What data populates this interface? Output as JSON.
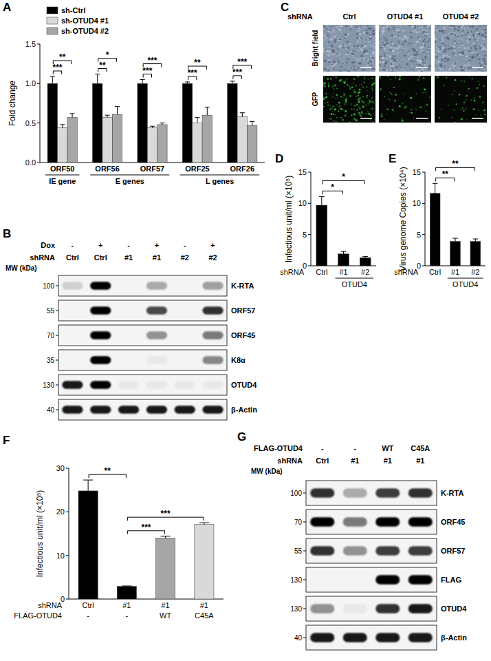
{
  "chart_data": [
    {
      "panel": "A",
      "type": "bar",
      "ylabel": "Fold change",
      "categories": [
        "ORF50",
        "ORF56",
        "ORF57",
        "ORF25",
        "ORF26"
      ],
      "groups": [
        {
          "label": "IE gene",
          "from": 0,
          "to": 0
        },
        {
          "label": "E genes",
          "from": 1,
          "to": 2
        },
        {
          "label": "L genes",
          "from": 3,
          "to": 4
        }
      ],
      "series": [
        {
          "name": "sh-Ctrl",
          "color": "#000000",
          "values": [
            1.0,
            1.0,
            1.0,
            1.0,
            1.0
          ],
          "errors": [
            0.09,
            0.12,
            0.05,
            0.02,
            0.03
          ]
        },
        {
          "name": "sh-OTUD4 #1",
          "color": "#d9d9d9",
          "values": [
            0.44,
            0.57,
            0.44,
            0.5,
            0.58
          ],
          "errors": [
            0.04,
            0.03,
            0.02,
            0.07,
            0.05
          ]
        },
        {
          "name": "sh-OTUD4 #2",
          "color": "#a6a6a6",
          "values": [
            0.57,
            0.61,
            0.48,
            0.6,
            0.47
          ],
          "errors": [
            0.05,
            0.1,
            0.02,
            0.1,
            0.05
          ]
        }
      ],
      "ylim": [
        0,
        1.5
      ],
      "yticks": [
        {
          "value": 0,
          "label": "0.0"
        },
        {
          "value": 0.5,
          "label": "0.5"
        },
        {
          "value": 1,
          "label": "1.0"
        },
        {
          "value": 1.5,
          "label": "1.5"
        }
      ],
      "legend": "upper left",
      "annotations": [
        {
          "category": 0,
          "from": 0,
          "to": 1,
          "text": "***"
        },
        {
          "category": 0,
          "from": 0,
          "to": 2,
          "text": "**"
        },
        {
          "category": 1,
          "from": 0,
          "to": 1,
          "text": "**"
        },
        {
          "category": 1,
          "from": 0,
          "to": 2,
          "text": "*"
        },
        {
          "category": 2,
          "from": 0,
          "to": 1,
          "text": "***"
        },
        {
          "category": 2,
          "from": 0,
          "to": 2,
          "text": "***"
        },
        {
          "category": 3,
          "from": 0,
          "to": 1,
          "text": "***"
        },
        {
          "category": 3,
          "from": 0,
          "to": 2,
          "text": "**"
        },
        {
          "category": 4,
          "from": 0,
          "to": 1,
          "text": "***"
        },
        {
          "category": 4,
          "from": 0,
          "to": 2,
          "text": "***"
        }
      ]
    },
    {
      "panel": "D",
      "type": "bar",
      "ylabel": "Infectious unit/ml (×10⁵)",
      "xlabel": "shRNA",
      "categories": [
        "Ctrl",
        "#1",
        "#2"
      ],
      "groups": [
        {
          "label": "OTUD4",
          "from": 1,
          "to": 2
        }
      ],
      "series": [
        {
          "color": "#000000",
          "values": [
            9.7,
            1.9,
            1.3
          ],
          "errors": [
            1.4,
            0.4,
            0.2
          ]
        }
      ],
      "ylim": [
        0,
        15
      ],
      "yticks": [
        0,
        5,
        10,
        15
      ],
      "annotations": [
        {
          "from": 0,
          "to": 1,
          "text": "*"
        },
        {
          "from": 0,
          "to": 2,
          "text": "*"
        }
      ]
    },
    {
      "panel": "E",
      "type": "bar",
      "ylabel": "Virus genome Copies (×10⁴)",
      "xlabel": "shRNA",
      "categories": [
        "Ctrl",
        "#1",
        "#2"
      ],
      "groups": [
        {
          "label": "OTUD4",
          "from": 1,
          "to": 2
        }
      ],
      "series": [
        {
          "color": "#000000",
          "values": [
            11.6,
            3.9,
            3.9
          ],
          "errors": [
            1.6,
            0.5,
            0.4
          ]
        }
      ],
      "ylim": [
        0,
        15
      ],
      "yticks": [
        0,
        5,
        10,
        15
      ],
      "annotations": [
        {
          "from": 0,
          "to": 1,
          "text": "**"
        },
        {
          "from": 0,
          "to": 2,
          "text": "**"
        }
      ]
    },
    {
      "panel": "F",
      "type": "bar",
      "ylabel": "Infectious unit/ml (×10⁵)",
      "xlabel": "shRNA",
      "categories": [
        "Ctrl",
        "#1",
        "#1",
        "#1"
      ],
      "rows": [
        {
          "label": "FLAG-OTUD4",
          "labels": [
            "-",
            "-",
            "WT",
            "C45A"
          ]
        }
      ],
      "series": [
        {
          "colors": [
            "#000000",
            "#000000",
            "#a6a6a6",
            "#d9d9d9"
          ],
          "values": [
            24.8,
            2.9,
            14.0,
            17.1
          ],
          "errors": [
            2.5,
            0.1,
            0.4,
            0.4
          ]
        }
      ],
      "ylim": [
        0,
        30
      ],
      "yticks": [
        0,
        10,
        20,
        30
      ],
      "annotations": [
        {
          "from": 0,
          "to": 1,
          "text": "**"
        },
        {
          "from": 1,
          "to": 2,
          "text": "***"
        },
        {
          "from": 1,
          "to": 3,
          "text": "***"
        }
      ]
    }
  ],
  "blots": [
    {
      "panel": "B",
      "mw_label": "MW (kDa)",
      "header": [
        {
          "label": "Dox",
          "values": [
            "-",
            "+",
            "-",
            "+",
            "-",
            "+"
          ]
        },
        {
          "label": "shRNA",
          "values": [
            "Ctrl",
            "Ctrl",
            "#1",
            "#1",
            "#2",
            "#2"
          ]
        }
      ],
      "rows": [
        {
          "name": "K-RTA",
          "mw": 100,
          "intensities": [
            0.15,
            1,
            0,
            0.3,
            0,
            0.35
          ]
        },
        {
          "name": "ORF57",
          "mw": 55,
          "intensities": [
            0,
            1,
            0,
            0.7,
            0,
            0.8
          ]
        },
        {
          "name": "ORF45",
          "mw": 70,
          "intensities": [
            0,
            1,
            0,
            0.4,
            0,
            0.5
          ]
        },
        {
          "name": "K8α",
          "mw": 35,
          "intensities": [
            0,
            1,
            0,
            0.05,
            0,
            0.45
          ]
        },
        {
          "name": "OTUD4",
          "mw": 130,
          "intensities": [
            0.9,
            1,
            0.05,
            0.05,
            0.05,
            0.05
          ]
        },
        {
          "name": "β-Actin",
          "mw": 40,
          "intensities": [
            0.9,
            0.9,
            0.9,
            0.9,
            0.9,
            0.9
          ]
        }
      ]
    },
    {
      "panel": "G",
      "mw_label": "MW (kDa)",
      "header": [
        {
          "label": "FLAG-OTUD4",
          "values": [
            "-",
            "-",
            "WT",
            "C45A"
          ]
        },
        {
          "label": "shRNA",
          "values": [
            "Ctrl",
            "#1",
            "#1",
            "#1"
          ]
        }
      ],
      "rows": [
        {
          "name": "K-RTA",
          "mw": 100,
          "intensities": [
            0.8,
            0.3,
            0.75,
            0.8
          ]
        },
        {
          "name": "ORF45",
          "mw": 70,
          "intensities": [
            1,
            0.5,
            1,
            1
          ]
        },
        {
          "name": "ORF57",
          "mw": 55,
          "intensities": [
            0.8,
            0.4,
            0.75,
            0.75
          ]
        },
        {
          "name": "FLAG",
          "mw": 130,
          "intensities": [
            0,
            0,
            1,
            1
          ]
        },
        {
          "name": "OTUD4",
          "mw": 130,
          "intensities": [
            0.4,
            0.05,
            0.8,
            0.9
          ]
        },
        {
          "name": "β-Actin",
          "mw": 40,
          "intensities": [
            0.9,
            0.9,
            0.9,
            0.9
          ]
        }
      ]
    }
  ],
  "images": {
    "panel": "C",
    "header": "shRNA",
    "columns": [
      "Ctrl",
      "OTUD4 #1",
      "OTUD4 #2"
    ],
    "rows": [
      {
        "label": "Bright field"
      },
      {
        "label": "GFP",
        "signal": [
          1,
          0.3,
          0.25
        ]
      }
    ]
  }
}
